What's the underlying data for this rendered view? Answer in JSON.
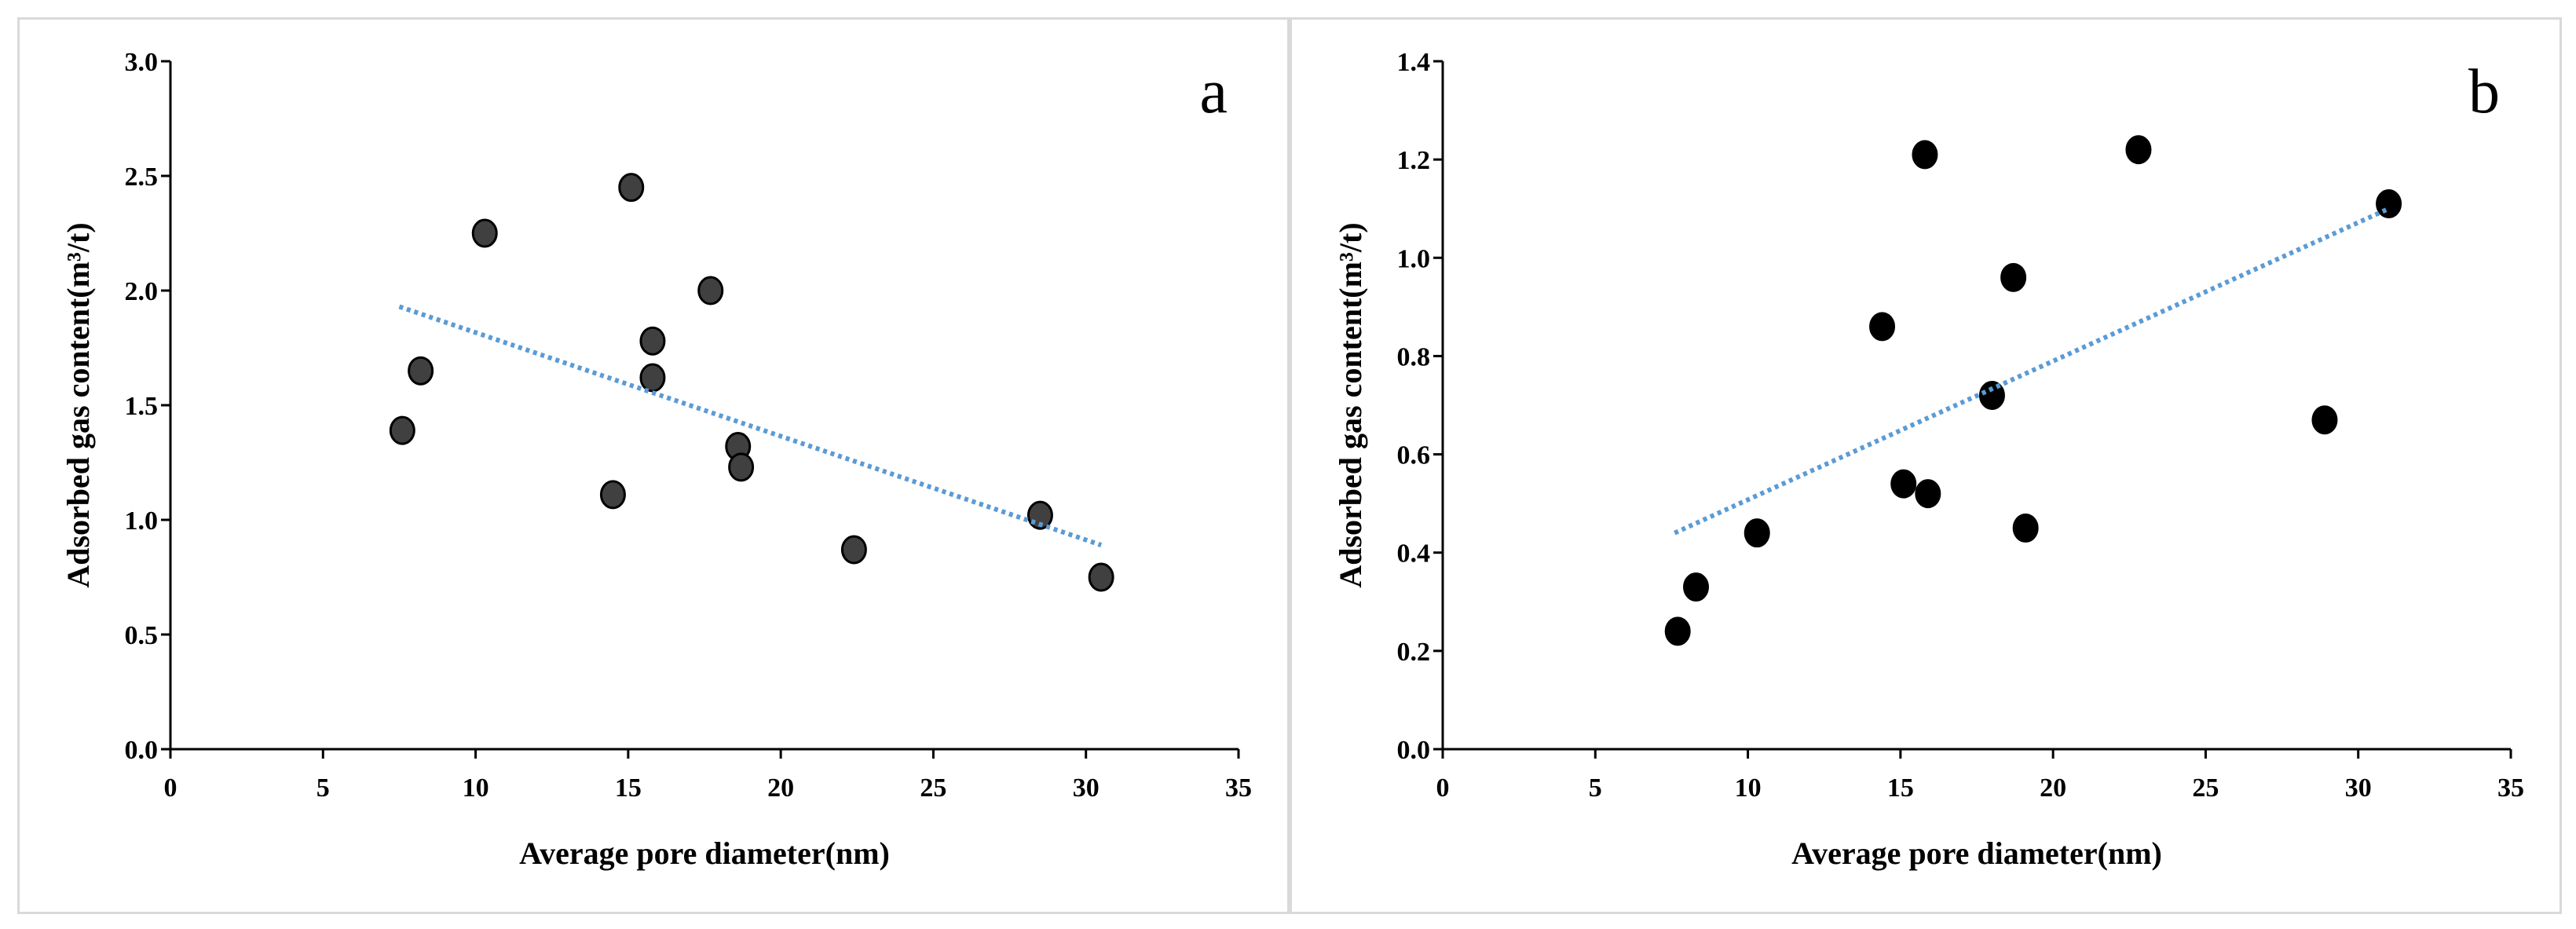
{
  "chart_data": [
    {
      "panel": "a",
      "type": "scatter",
      "panel_label": "a",
      "xlabel": "Average pore diameter(nm)",
      "ylabel": "Adsorbed gas content(m³/t)",
      "xlim": [
        0,
        35
      ],
      "ylim": [
        0,
        3.0
      ],
      "xticks": [
        0,
        5,
        10,
        15,
        20,
        25,
        30,
        35
      ],
      "yticks": [
        "0.0",
        "0.5",
        "1.0",
        "1.5",
        "2.0",
        "2.5",
        "3.0"
      ],
      "grid": false,
      "point_color": "#404040",
      "trend_color": "#5b9bd5",
      "points": [
        {
          "x": 7.6,
          "y": 1.39
        },
        {
          "x": 8.2,
          "y": 1.65
        },
        {
          "x": 10.3,
          "y": 2.25
        },
        {
          "x": 14.5,
          "y": 1.11
        },
        {
          "x": 15.1,
          "y": 2.45
        },
        {
          "x": 15.8,
          "y": 1.62
        },
        {
          "x": 15.8,
          "y": 1.78
        },
        {
          "x": 17.7,
          "y": 2.0
        },
        {
          "x": 18.6,
          "y": 1.32
        },
        {
          "x": 18.7,
          "y": 1.23
        },
        {
          "x": 22.4,
          "y": 0.87
        },
        {
          "x": 28.5,
          "y": 1.02
        },
        {
          "x": 30.5,
          "y": 0.75
        }
      ],
      "trendline": {
        "x": [
          7.5,
          30.5
        ],
        "y": [
          1.93,
          0.89
        ]
      }
    },
    {
      "panel": "b",
      "type": "scatter",
      "panel_label": "b",
      "xlabel": "Average pore diameter(nm)",
      "ylabel": "Adsorbed gas content(m³/t)",
      "xlim": [
        0,
        35
      ],
      "ylim": [
        0,
        1.4
      ],
      "xticks": [
        0,
        5,
        10,
        15,
        20,
        25,
        30,
        35
      ],
      "yticks": [
        "0.0",
        "0.2",
        "0.4",
        "0.6",
        "0.8",
        "1.0",
        "1.2",
        "1.4"
      ],
      "grid": false,
      "point_color": "#000000",
      "trend_color": "#5b9bd5",
      "points": [
        {
          "x": 7.7,
          "y": 0.24
        },
        {
          "x": 8.3,
          "y": 0.33
        },
        {
          "x": 10.3,
          "y": 0.44
        },
        {
          "x": 14.4,
          "y": 0.86
        },
        {
          "x": 15.1,
          "y": 0.54
        },
        {
          "x": 15.8,
          "y": 1.21
        },
        {
          "x": 15.9,
          "y": 0.52
        },
        {
          "x": 18.0,
          "y": 0.72
        },
        {
          "x": 18.7,
          "y": 0.96
        },
        {
          "x": 19.1,
          "y": 0.45
        },
        {
          "x": 22.8,
          "y": 1.22
        },
        {
          "x": 28.9,
          "y": 0.67
        },
        {
          "x": 31.0,
          "y": 1.11
        }
      ],
      "trendline": {
        "x": [
          7.6,
          31.0
        ],
        "y": [
          0.44,
          1.1
        ]
      }
    }
  ]
}
